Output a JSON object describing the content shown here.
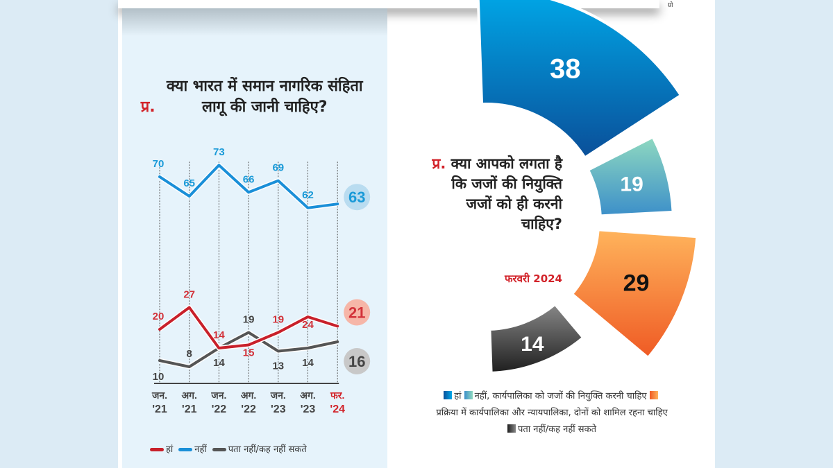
{
  "left_chart": {
    "question_prefix": "प्र.",
    "question": "क्या भारत में समान नागरिक संहिता लागू की जानी चाहिए?",
    "chart_data": {
      "type": "line",
      "categories": [
        [
          "जन.",
          "'21"
        ],
        [
          "अग.",
          "'21"
        ],
        [
          "जन.",
          "'22"
        ],
        [
          "अग.",
          "'22"
        ],
        [
          "जन.",
          "'23"
        ],
        [
          "अग.",
          "'23"
        ],
        [
          "फर.",
          "'24"
        ]
      ],
      "series": [
        {
          "name": "हां",
          "values": [
            20,
            27,
            14,
            15,
            19,
            24,
            21
          ],
          "color": "#c8202a"
        },
        {
          "name": "नहीं",
          "values": [
            70,
            65,
            73,
            66,
            69,
            62,
            63
          ],
          "color": "#1a8fd8"
        },
        {
          "name": "पता नहीं/कह नहीं सकते",
          "values": [
            10,
            8,
            14,
            19,
            13,
            14,
            16
          ],
          "color": "#555555"
        }
      ],
      "highlight_category_color": "#d2232a",
      "legend_position": "bottom"
    }
  },
  "right_chart": {
    "question_prefix": "प्र.",
    "question": "क्या आपको लगता है कि जजों की नियुक्ति जजों को ही करनी चाहिए?",
    "date": "फरवरी 2024",
    "chart_data": {
      "type": "pie",
      "values": [
        38,
        19,
        29,
        14
      ],
      "labels": [
        "हां",
        "नहीं, कार्यपालिका को जजों की नियुक्ति करनी चाहिए",
        "प्रक्रिया में कार्यपालिका और न्यायपालिका, दोनों को शामिल रहना चाहिए",
        "पता नहीं/कह नहीं सकते"
      ],
      "colors": [
        "#0a68b0",
        "#5bb8c8",
        "#f47d30",
        "#3a3a3a"
      ],
      "legend_position": "bottom"
    }
  }
}
